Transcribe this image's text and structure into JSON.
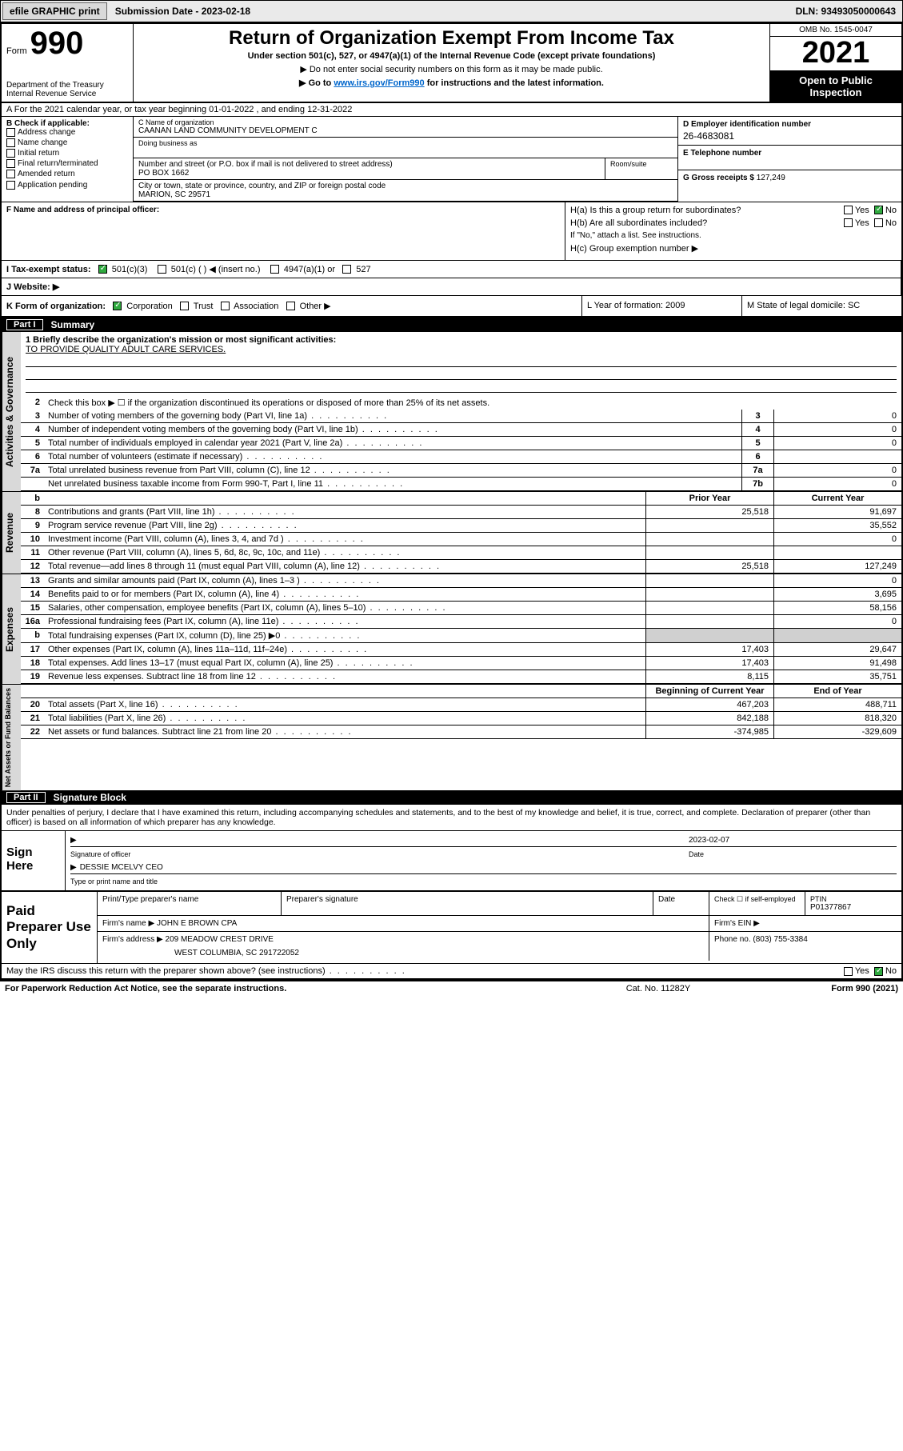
{
  "topbar": {
    "efile": "efile GRAPHIC print",
    "submission": "Submission Date - 2023-02-18",
    "dln": "DLN: 93493050000643"
  },
  "header": {
    "form_word": "Form",
    "form_number": "990",
    "dept": "Department of the Treasury",
    "irs": "Internal Revenue Service",
    "title": "Return of Organization Exempt From Income Tax",
    "sub1": "Under section 501(c), 527, or 4947(a)(1) of the Internal Revenue Code (except private foundations)",
    "sub2": "▶ Do not enter social security numbers on this form as it may be made public.",
    "sub3_pre": "▶ Go to ",
    "sub3_link": "www.irs.gov/Form990",
    "sub3_post": " for instructions and the latest information.",
    "omb": "OMB No. 1545-0047",
    "year": "2021",
    "open": "Open to Public Inspection"
  },
  "rowA": "A For the 2021 calendar year, or tax year beginning 01-01-2022   , and ending 12-31-2022",
  "colB": {
    "title": "B Check if applicable:",
    "items": [
      "Address change",
      "Name change",
      "Initial return",
      "Final return/terminated",
      "Amended return",
      "Application pending"
    ]
  },
  "nameblock": {
    "c_lbl": "C Name of organization",
    "c_val": "CAANAN LAND COMMUNITY DEVELOPMENT C",
    "dba_lbl": "Doing business as",
    "street_lbl": "Number and street (or P.O. box if mail is not delivered to street address)",
    "street_val": "PO BOX 1662",
    "suite_lbl": "Room/suite",
    "city_lbl": "City or town, state or province, country, and ZIP or foreign postal code",
    "city_val": "MARION, SC  29571"
  },
  "colD": {
    "d_lbl": "D Employer identification number",
    "d_val": "26-4683081",
    "e_lbl": "E Telephone number",
    "g_lbl": "G Gross receipts $",
    "g_val": "127,249"
  },
  "F_lbl": "F  Name and address of principal officer:",
  "H": {
    "a": "H(a)  Is this a group return for subordinates?",
    "a_yes": "Yes",
    "a_no": "No",
    "b": "H(b)  Are all subordinates included?",
    "b_yes": "Yes",
    "b_no": "No",
    "b_note": "If \"No,\" attach a list. See instructions.",
    "c": "H(c)  Group exemption number ▶"
  },
  "I": {
    "lbl": "I   Tax-exempt status:",
    "o1": "501(c)(3)",
    "o2": "501(c) (  ) ◀ (insert no.)",
    "o3": "4947(a)(1) or",
    "o4": "527"
  },
  "J": "J   Website: ▶",
  "K": "K Form of organization:",
  "K_opts": [
    "Corporation",
    "Trust",
    "Association",
    "Other ▶"
  ],
  "L": "L Year of formation: 2009",
  "M": "M State of legal domicile: SC",
  "part1": "Part I",
  "part1_title": "Summary",
  "mission_lbl": "1   Briefly describe the organization's mission or most significant activities:",
  "mission_val": "TO PROVIDE QUALITY ADULT CARE SERVICES.",
  "gov_lines": [
    {
      "n": "2",
      "d": "Check this box ▶ ☐  if the organization discontinued its operations or disposed of more than 25% of its net assets."
    },
    {
      "n": "3",
      "d": "Number of voting members of the governing body (Part VI, line 1a)",
      "box": "3",
      "v": "0"
    },
    {
      "n": "4",
      "d": "Number of independent voting members of the governing body (Part VI, line 1b)",
      "box": "4",
      "v": "0"
    },
    {
      "n": "5",
      "d": "Total number of individuals employed in calendar year 2021 (Part V, line 2a)",
      "box": "5",
      "v": "0"
    },
    {
      "n": "6",
      "d": "Total number of volunteers (estimate if necessary)",
      "box": "6",
      "v": ""
    },
    {
      "n": "7a",
      "d": "Total unrelated business revenue from Part VIII, column (C), line 12",
      "box": "7a",
      "v": "0"
    },
    {
      "n": "",
      "d": "Net unrelated business taxable income from Form 990-T, Part I, line 11",
      "box": "7b",
      "v": "0"
    }
  ],
  "col_hdr": {
    "b": "b",
    "py": "Prior Year",
    "cy": "Current Year"
  },
  "rev_lines": [
    {
      "n": "8",
      "d": "Contributions and grants (Part VIII, line 1h)",
      "py": "25,518",
      "cy": "91,697"
    },
    {
      "n": "9",
      "d": "Program service revenue (Part VIII, line 2g)",
      "py": "",
      "cy": "35,552"
    },
    {
      "n": "10",
      "d": "Investment income (Part VIII, column (A), lines 3, 4, and 7d )",
      "py": "",
      "cy": "0"
    },
    {
      "n": "11",
      "d": "Other revenue (Part VIII, column (A), lines 5, 6d, 8c, 9c, 10c, and 11e)",
      "py": "",
      "cy": ""
    },
    {
      "n": "12",
      "d": "Total revenue—add lines 8 through 11 (must equal Part VIII, column (A), line 12)",
      "py": "25,518",
      "cy": "127,249"
    }
  ],
  "exp_lines": [
    {
      "n": "13",
      "d": "Grants and similar amounts paid (Part IX, column (A), lines 1–3 )",
      "py": "",
      "cy": "0"
    },
    {
      "n": "14",
      "d": "Benefits paid to or for members (Part IX, column (A), line 4)",
      "py": "",
      "cy": "3,695"
    },
    {
      "n": "15",
      "d": "Salaries, other compensation, employee benefits (Part IX, column (A), lines 5–10)",
      "py": "",
      "cy": "58,156"
    },
    {
      "n": "16a",
      "d": "Professional fundraising fees (Part IX, column (A), line 11e)",
      "py": "",
      "cy": "0"
    },
    {
      "n": "b",
      "d": "Total fundraising expenses (Part IX, column (D), line 25) ▶0",
      "py": "shade",
      "cy": "shade"
    },
    {
      "n": "17",
      "d": "Other expenses (Part IX, column (A), lines 11a–11d, 11f–24e)",
      "py": "17,403",
      "cy": "29,647"
    },
    {
      "n": "18",
      "d": "Total expenses. Add lines 13–17 (must equal Part IX, column (A), line 25)",
      "py": "17,403",
      "cy": "91,498"
    },
    {
      "n": "19",
      "d": "Revenue less expenses. Subtract line 18 from line 12",
      "py": "8,115",
      "cy": "35,751"
    }
  ],
  "na_hdr": {
    "py": "Beginning of Current Year",
    "cy": "End of Year"
  },
  "na_lines": [
    {
      "n": "20",
      "d": "Total assets (Part X, line 16)",
      "py": "467,203",
      "cy": "488,711"
    },
    {
      "n": "21",
      "d": "Total liabilities (Part X, line 26)",
      "py": "842,188",
      "cy": "818,320"
    },
    {
      "n": "22",
      "d": "Net assets or fund balances. Subtract line 21 from line 20",
      "py": "-374,985",
      "cy": "-329,609"
    }
  ],
  "part2": "Part II",
  "part2_title": "Signature Block",
  "sig_intro": "Under penalties of perjury, I declare that I have examined this return, including accompanying schedules and statements, and to the best of my knowledge and belief, it is true, correct, and complete. Declaration of preparer (other than officer) is based on all information of which preparer has any knowledge.",
  "sign_here": "Sign Here",
  "sig": {
    "officer_lbl": "Signature of officer",
    "date_lbl": "Date",
    "date_val": "2023-02-07",
    "name_val": "DESSIE MCELVY CEO",
    "name_lbl": "Type or print name and title"
  },
  "paid": {
    "title": "Paid Preparer Use Only",
    "h1": "Print/Type preparer's name",
    "h2": "Preparer's signature",
    "h3": "Date",
    "h4": "Check ☐ if self-employed",
    "h5_lbl": "PTIN",
    "h5_val": "P01377867",
    "firm_lbl": "Firm's name    ▶",
    "firm_val": "JOHN E BROWN CPA",
    "ein_lbl": "Firm's EIN ▶",
    "addr_lbl": "Firm's address ▶",
    "addr_val": "209 MEADOW CREST DRIVE",
    "addr_val2": "WEST COLUMBIA, SC  291722052",
    "phone_lbl": "Phone no.",
    "phone_val": "(803) 755-3384"
  },
  "discuss": {
    "q": "May the IRS discuss this return with the preparer shown above? (see instructions)",
    "yes": "Yes",
    "no": "No"
  },
  "footer": {
    "l": "For Paperwork Reduction Act Notice, see the separate instructions.",
    "m": "Cat. No. 11282Y",
    "r": "Form 990 (2021)"
  },
  "vtabs": {
    "gov": "Activities & Governance",
    "rev": "Revenue",
    "exp": "Expenses",
    "na": "Net Assets or Fund Balances"
  }
}
